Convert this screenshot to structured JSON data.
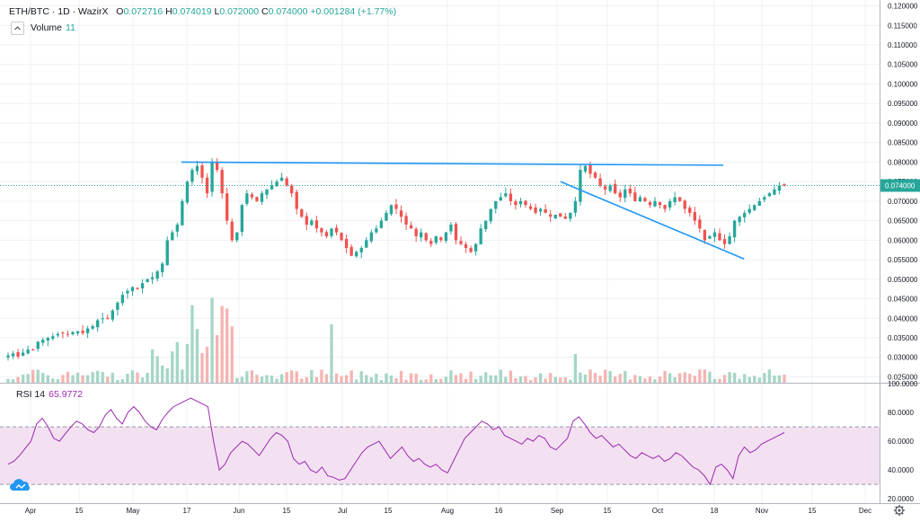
{
  "header": {
    "symbol": "ETH/BTC",
    "interval": "1D",
    "exchange": "WazirX",
    "o_label": "O",
    "o_value": "0.072716",
    "h_label": "H",
    "h_value": "0.074019",
    "l_label": "L",
    "l_value": "0.072000",
    "c_label": "C",
    "c_value": "0.074000",
    "change": "+0.001284 (+1.77%)"
  },
  "volume_legend": {
    "label": "Volume",
    "value": "11"
  },
  "rsi_legend": {
    "label": "RSI 14",
    "value": "65.9772"
  },
  "price_badge": "0.074000",
  "colors": {
    "up": "#26a69a",
    "down": "#ef5350",
    "vol_up": "#a5d6c6",
    "vol_down": "#f4b4b2",
    "trendline": "#2196f3",
    "rsi_line": "#9c27b0",
    "rsi_band": "#f3e1f2",
    "grid": "#eef0f3"
  },
  "icons": {
    "collapse": "chevron-up-icon",
    "settings": "gear-icon",
    "logo": "cloud-logo-icon"
  },
  "chart_data": {
    "type": "candlestick",
    "price_axis": {
      "ticks": [
        "0.120000",
        "0.115000",
        "0.110000",
        "0.105000",
        "0.100000",
        "0.095000",
        "0.090000",
        "0.085000",
        "0.080000",
        "0.075000",
        "0.070000",
        "0.065000",
        "0.060000",
        "0.055000",
        "0.050000",
        "0.045000",
        "0.040000",
        "0.035000",
        "0.030000",
        "0.025000"
      ],
      "range": [
        0.0235,
        0.1215
      ]
    },
    "rsi_axis": {
      "ticks": [
        "100.0000",
        "80.0000",
        "60.0000",
        "40.0000",
        "20.0000"
      ],
      "range": [
        17,
        100
      ],
      "band": [
        30,
        70
      ]
    },
    "x_axis": {
      "labels": [
        "Apr",
        "15",
        "May",
        "17",
        "Jun",
        "15",
        "Jul",
        "15",
        "Aug",
        "16",
        "Sep",
        "15",
        "Oct",
        "18",
        "Nov",
        "15",
        "Dec"
      ]
    },
    "series_close": [
      0.0305,
      0.031,
      0.0302,
      0.0312,
      0.032,
      0.0318,
      0.034,
      0.0345,
      0.035,
      0.0354,
      0.036,
      0.0362,
      0.0358,
      0.0365,
      0.0367,
      0.0362,
      0.0374,
      0.038,
      0.0395,
      0.04,
      0.0398,
      0.042,
      0.044,
      0.046,
      0.047,
      0.048,
      0.0475,
      0.049,
      0.05,
      0.0505,
      0.052,
      0.054,
      0.06,
      0.062,
      0.064,
      0.07,
      0.075,
      0.078,
      0.079,
      0.076,
      0.072,
      0.08,
      0.078,
      0.072,
      0.065,
      0.06,
      0.062,
      0.069,
      0.072,
      0.071,
      0.07,
      0.072,
      0.073,
      0.074,
      0.075,
      0.076,
      0.074,
      0.072,
      0.068,
      0.066,
      0.064,
      0.065,
      0.063,
      0.062,
      0.061,
      0.063,
      0.062,
      0.06,
      0.058,
      0.056,
      0.057,
      0.058,
      0.06,
      0.062,
      0.063,
      0.065,
      0.067,
      0.069,
      0.068,
      0.066,
      0.064,
      0.063,
      0.061,
      0.062,
      0.06,
      0.059,
      0.061,
      0.06,
      0.062,
      0.064,
      0.06,
      0.059,
      0.058,
      0.057,
      0.059,
      0.063,
      0.065,
      0.068,
      0.07,
      0.071,
      0.072,
      0.07,
      0.069,
      0.07,
      0.069,
      0.068,
      0.067,
      0.068,
      0.067,
      0.066,
      0.0665,
      0.066,
      0.0655,
      0.067,
      0.07,
      0.078,
      0.079,
      0.077,
      0.076,
      0.074,
      0.073,
      0.074,
      0.072,
      0.071,
      0.073,
      0.072,
      0.07,
      0.071,
      0.07,
      0.069,
      0.07,
      0.069,
      0.068,
      0.07,
      0.071,
      0.07,
      0.068,
      0.067,
      0.065,
      0.063,
      0.06,
      0.061,
      0.062,
      0.06,
      0.059,
      0.061,
      0.065,
      0.066,
      0.067,
      0.068,
      0.069,
      0.07,
      0.071,
      0.072,
      0.073,
      0.074,
      0.074
    ],
    "trendlines": [
      {
        "name": "resistance",
        "from": {
          "date": "May 15",
          "price": 0.08
        },
        "to": {
          "date": "Oct 20",
          "price": 0.0792
        }
      },
      {
        "name": "support",
        "from": {
          "date": "Sep 2",
          "price": 0.075
        },
        "to": {
          "date": "Oct 26",
          "price": 0.0552
        }
      }
    ],
    "rsi_values": [
      44,
      46,
      50,
      55,
      60,
      72,
      76,
      70,
      62,
      60,
      65,
      70,
      74,
      72,
      68,
      66,
      70,
      78,
      82,
      76,
      72,
      80,
      84,
      80,
      74,
      70,
      68,
      75,
      80,
      84,
      86,
      88,
      90,
      88,
      86,
      84,
      60,
      40,
      44,
      52,
      56,
      60,
      58,
      54,
      50,
      56,
      62,
      66,
      64,
      60,
      48,
      44,
      46,
      40,
      38,
      42,
      36,
      35,
      33,
      34,
      40,
      46,
      52,
      56,
      58,
      60,
      54,
      48,
      52,
      56,
      50,
      46,
      48,
      44,
      42,
      44,
      40,
      38,
      46,
      54,
      62,
      66,
      70,
      74,
      72,
      68,
      70,
      64,
      62,
      60,
      58,
      62,
      60,
      64,
      62,
      56,
      54,
      58,
      62,
      74,
      77,
      72,
      66,
      62,
      64,
      60,
      56,
      58,
      54,
      50,
      48,
      52,
      50,
      48,
      50,
      46,
      48,
      52,
      50,
      46,
      42,
      40,
      36,
      30,
      42,
      44,
      40,
      34,
      50,
      56,
      52,
      54,
      58,
      60,
      62,
      64,
      66
    ]
  }
}
